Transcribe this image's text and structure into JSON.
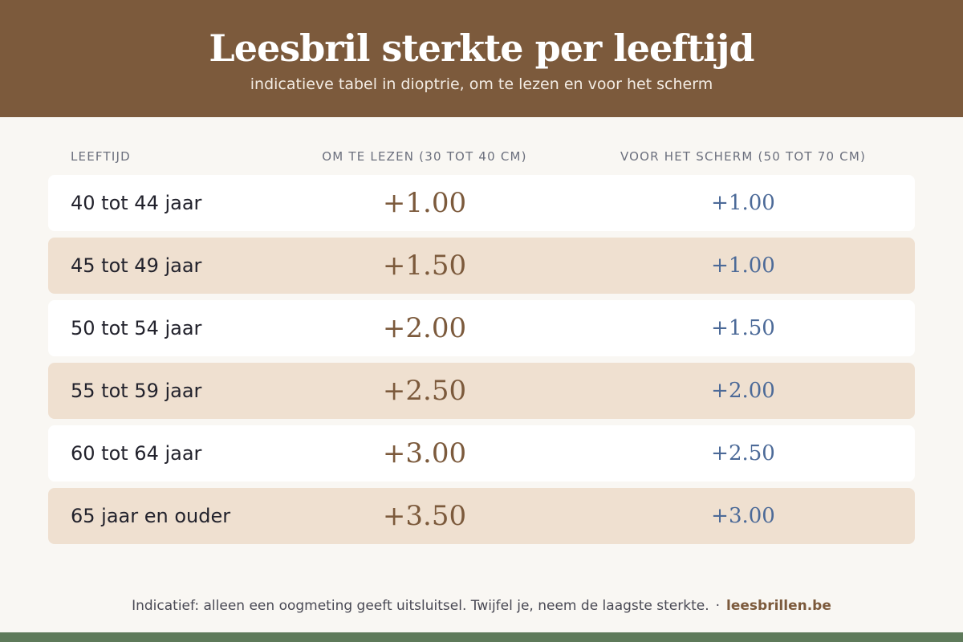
{
  "header": {
    "title": "Leesbril sterkte per leeftijd",
    "subtitle": "indicatieve tabel in dioptrie, om te lezen en voor het scherm"
  },
  "table": {
    "columns": [
      "LEEFTIJD",
      "OM TE LEZEN (30 TOT 40 CM)",
      "VOOR HET SCHERM (50 TOT 70 CM)"
    ],
    "rows": [
      {
        "age": "40 tot 44 jaar",
        "read": "+1.00",
        "screen": "+1.00"
      },
      {
        "age": "45 tot 49 jaar",
        "read": "+1.50",
        "screen": "+1.00"
      },
      {
        "age": "50 tot 54 jaar",
        "read": "+2.00",
        "screen": "+1.50"
      },
      {
        "age": "55 tot 59 jaar",
        "read": "+2.50",
        "screen": "+2.00"
      },
      {
        "age": "60 tot 64 jaar",
        "read": "+3.00",
        "screen": "+2.50"
      },
      {
        "age": "65 jaar en ouder",
        "read": "+3.50",
        "screen": "+3.00"
      }
    ]
  },
  "footer": {
    "note": "Indicatief: alleen een oogmeting geeft uitsluitsel. Twijfel je, neem de laagste sterkte.",
    "separator": "·",
    "brand": "leesbrillen.be"
  },
  "colors": {
    "header_bg": "#7c5a3c",
    "read_value": "#7c5a3c",
    "screen_value": "#4c6a98",
    "alt_row_bg": "#efe0d0",
    "bottom_bar": "#5e7a5a"
  }
}
